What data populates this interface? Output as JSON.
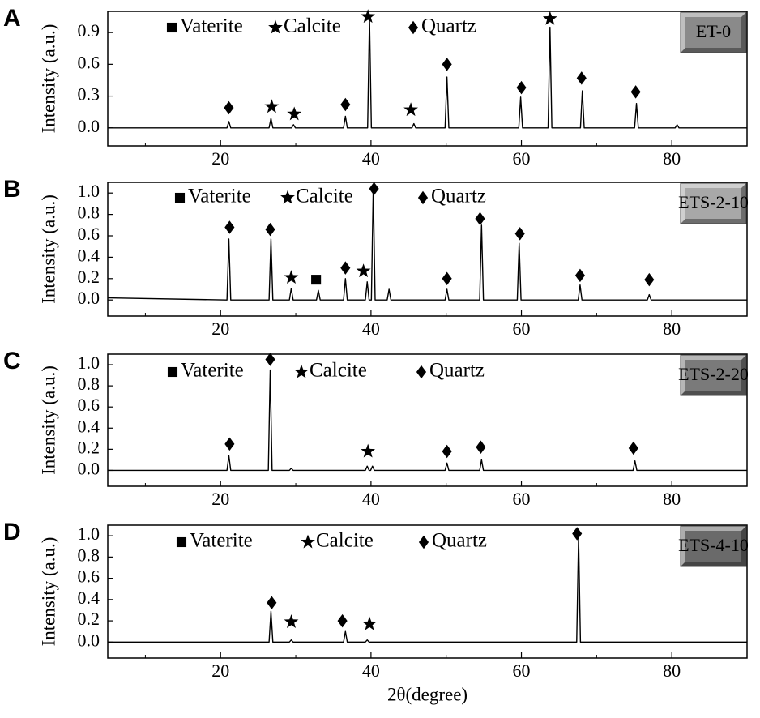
{
  "chart_data": [
    {
      "type": "line",
      "panel_label": "A",
      "sample_label": "ET-0",
      "label_box_color": "#8a8a8a",
      "ylabel": "Intensity (a.u.)",
      "color": "#000000",
      "xlim": [
        5,
        90
      ],
      "xticks": [
        20,
        40,
        60,
        80
      ],
      "xminorticks": [
        10,
        30,
        50,
        70,
        90
      ],
      "ylim": [
        -0.17,
        1.1
      ],
      "yticks": [
        {
          "value": 0,
          "label": "0.0"
        },
        0.3,
        0.6,
        0.9
      ],
      "x": [
        5,
        20.85,
        21.1,
        21.35,
        26.45,
        26.7,
        26.95,
        29.45,
        29.7,
        29.95,
        36.35,
        36.6,
        36.85,
        39.55,
        39.8,
        40.05,
        45.45,
        45.7,
        45.95,
        49.85,
        50.1,
        50.35,
        59.65,
        59.9,
        60.15,
        63.55,
        63.8,
        64.05,
        67.85,
        68.1,
        68.35,
        75.05,
        75.3,
        75.55,
        80.45,
        80.7,
        80.95,
        90
      ],
      "values": [
        0,
        0,
        0.06,
        0,
        0,
        0.09,
        0,
        0,
        0.03,
        0,
        0,
        0.11,
        0,
        0,
        1.05,
        0,
        0,
        0.04,
        0,
        0,
        0.48,
        0,
        0,
        0.29,
        0,
        0,
        0.95,
        0,
        0,
        0.35,
        0,
        0,
        0.23,
        0,
        0,
        0.03,
        0,
        0
      ],
      "phases": [
        {
          "name": "Vaterite",
          "symbol": "square",
          "x": [],
          "y": []
        },
        {
          "name": "Calcite",
          "symbol": "star",
          "x": [
            26.8,
            29.8,
            39.6,
            45.3,
            63.8
          ],
          "y": [
            0.2,
            0.13,
            1.05,
            0.17,
            1.03
          ]
        },
        {
          "name": "Quartz",
          "symbol": "diamond",
          "x": [
            21.1,
            36.6,
            50.1,
            60.0,
            68.0,
            75.2
          ],
          "y": [
            0.19,
            0.22,
            0.6,
            0.38,
            0.47,
            0.34
          ]
        }
      ]
    },
    {
      "type": "line",
      "panel_label": "B",
      "sample_label": "ETS-2-10",
      "label_box_color": "#a8a8a8",
      "ylabel": "Intensity (a.u.)",
      "color": "#000000",
      "xlim": [
        5,
        90
      ],
      "xticks": [
        20,
        40,
        60,
        80
      ],
      "xminorticks": [
        10,
        30,
        50,
        70,
        90
      ],
      "ylim": [
        -0.15,
        1.1
      ],
      "yticks": [
        {
          "value": 0,
          "label": "0.0"
        },
        0.2,
        0.4,
        0.6,
        0.8,
        {
          "value": 1,
          "label": "1.0"
        }
      ],
      "x": [
        5,
        20.85,
        21.1,
        21.35,
        26.45,
        26.7,
        26.95,
        29.15,
        29.4,
        29.65,
        32.75,
        33.0,
        33.25,
        36.35,
        36.6,
        36.85,
        39.25,
        39.5,
        39.75,
        40.05,
        40.3,
        40.55,
        42.15,
        42.4,
        42.65,
        49.85,
        50.1,
        50.35,
        54.45,
        54.7,
        54.95,
        59.45,
        59.7,
        59.95,
        67.55,
        67.8,
        68.05,
        76.75,
        77.0,
        77.25,
        90
      ],
      "values": [
        0.02,
        0,
        0.57,
        0,
        0,
        0.57,
        0,
        0,
        0.11,
        0,
        0,
        0.09,
        0,
        0,
        0.2,
        0,
        0,
        0.17,
        0,
        0,
        1.05,
        0,
        0,
        0.1,
        0,
        0,
        0.1,
        0,
        0,
        0.7,
        0,
        0,
        0.53,
        0,
        0,
        0.14,
        0,
        0,
        0.05,
        0,
        0
      ],
      "phases": [
        {
          "name": "Vaterite",
          "symbol": "square",
          "x": [
            32.7
          ],
          "y": [
            0.19
          ]
        },
        {
          "name": "Calcite",
          "symbol": "star",
          "x": [
            29.4,
            39.0
          ],
          "y": [
            0.21,
            0.27
          ]
        },
        {
          "name": "Quartz",
          "symbol": "diamond",
          "x": [
            21.2,
            26.6,
            36.6,
            40.4,
            50.1,
            54.5,
            59.8,
            67.8,
            77.0
          ],
          "y": [
            0.68,
            0.66,
            0.3,
            1.04,
            0.2,
            0.76,
            0.62,
            0.23,
            0.19
          ]
        }
      ]
    },
    {
      "type": "line",
      "panel_label": "C",
      "sample_label": "ETS-2-20",
      "label_box_color": "#7a7a7a",
      "ylabel": "Intensity (a.u.)",
      "color": "#000000",
      "xlim": [
        5,
        90
      ],
      "xticks": [
        20,
        40,
        60,
        80
      ],
      "xminorticks": [
        10,
        30,
        50,
        70,
        90
      ],
      "ylim": [
        -0.15,
        1.1
      ],
      "yticks": [
        {
          "value": 0,
          "label": "0.0"
        },
        0.2,
        0.4,
        0.6,
        0.8,
        {
          "value": 1,
          "label": "1.0"
        }
      ],
      "x": [
        5,
        20.85,
        21.1,
        21.35,
        26.35,
        26.6,
        26.85,
        29.15,
        29.4,
        29.65,
        39.25,
        39.5,
        39.75,
        39.95,
        40.2,
        40.45,
        49.85,
        50.1,
        50.35,
        54.45,
        54.7,
        54.95,
        74.85,
        75.1,
        75.35,
        90
      ],
      "values": [
        0,
        0,
        0.14,
        0,
        0,
        0.95,
        0,
        0,
        0.02,
        0,
        0,
        0.04,
        0,
        0,
        0.04,
        0,
        0,
        0.07,
        0,
        0,
        0.1,
        0,
        0,
        0.09,
        0,
        0
      ],
      "phases": [
        {
          "name": "Vaterite",
          "symbol": "square",
          "x": [],
          "y": []
        },
        {
          "name": "Calcite",
          "symbol": "star",
          "x": [
            39.6
          ],
          "y": [
            0.18
          ]
        },
        {
          "name": "Quartz",
          "symbol": "diamond",
          "x": [
            21.2,
            26.6,
            50.1,
            54.6,
            74.9
          ],
          "y": [
            0.25,
            1.05,
            0.18,
            0.22,
            0.21
          ]
        }
      ]
    },
    {
      "type": "line",
      "panel_label": "D",
      "sample_label": "ETS-4-10",
      "label_box_color": "#6a6a6a",
      "ylabel": "Intensity (a.u.)",
      "xlabel": "2θ(degree)",
      "color": "#000000",
      "xlim": [
        5,
        90
      ],
      "xticks": [
        20,
        40,
        60,
        80
      ],
      "xminorticks": [
        10,
        30,
        50,
        70,
        90
      ],
      "ylim": [
        -0.15,
        1.1
      ],
      "yticks": [
        {
          "value": 0,
          "label": "0.0"
        },
        0.2,
        0.4,
        0.6,
        0.8,
        {
          "value": 1,
          "label": "1.0"
        }
      ],
      "x": [
        5,
        26.45,
        26.7,
        26.95,
        29.15,
        29.4,
        29.65,
        36.35,
        36.6,
        36.85,
        39.25,
        39.5,
        39.75,
        67.35,
        67.6,
        67.85,
        90
      ],
      "values": [
        0,
        0,
        0.29,
        0,
        0,
        0.02,
        0,
        0,
        0.1,
        0,
        0,
        0.02,
        0,
        0,
        1.0,
        0,
        0
      ],
      "phases": [
        {
          "name": "Vaterite",
          "symbol": "square",
          "x": [],
          "y": []
        },
        {
          "name": "Calcite",
          "symbol": "star",
          "x": [
            29.4,
            39.8
          ],
          "y": [
            0.19,
            0.17
          ]
        },
        {
          "name": "Quartz",
          "symbol": "diamond",
          "x": [
            26.8,
            36.2,
            67.4
          ],
          "y": [
            0.37,
            0.2,
            1.02
          ]
        }
      ]
    }
  ]
}
